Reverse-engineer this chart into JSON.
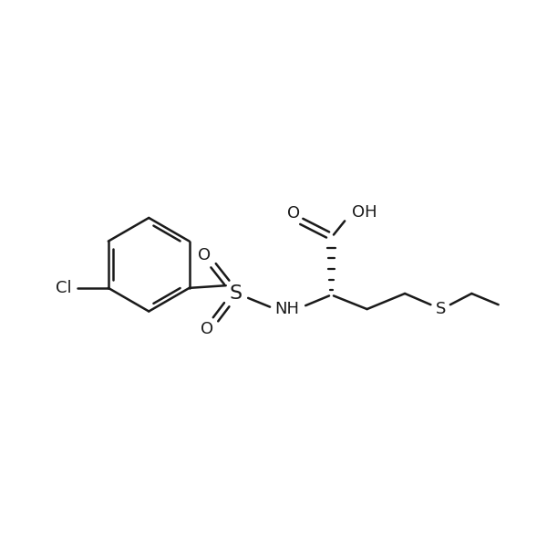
{
  "bg_color": "#ffffff",
  "line_color": "#1a1a1a",
  "line_width": 1.8,
  "font_size": 13,
  "figsize": [
    6.0,
    6.0
  ],
  "dpi": 100,
  "xlim": [
    0,
    12
  ],
  "ylim": [
    0,
    12
  ]
}
